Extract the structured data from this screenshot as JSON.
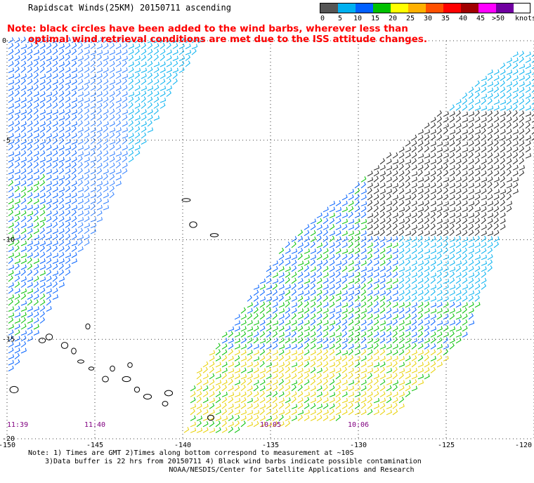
{
  "title": "Rapidscat Winds(25KM) 20150711 ascending",
  "note": {
    "line1": "Note: black circles have been added to the wind barbs, wherever less than",
    "line2": "optimal wind retrieval conditions are met due to the ISS attitude changes."
  },
  "legend": {
    "unit_label": "knots",
    "items": [
      {
        "label": "0",
        "color": "#555555"
      },
      {
        "label": "5",
        "color": "#00b0f0"
      },
      {
        "label": "10",
        "color": "#0060ff"
      },
      {
        "label": "15",
        "color": "#00c000"
      },
      {
        "label": "20",
        "color": "#ffff00"
      },
      {
        "label": "25",
        "color": "#ffb000"
      },
      {
        "label": "30",
        "color": "#ff5000"
      },
      {
        "label": "35",
        "color": "#ff0000"
      },
      {
        "label": "40",
        "color": "#a00000"
      },
      {
        "label": "45",
        "color": "#ff00ff"
      },
      {
        "label": ">50",
        "color": "#7000a0"
      }
    ]
  },
  "map": {
    "lon_range": [
      -150,
      -120
    ],
    "lat_range": [
      0,
      -20
    ],
    "lon_ticks": [
      -150,
      -145,
      -140,
      -135,
      -130,
      -125,
      -120
    ],
    "lat_ticks": [
      0,
      -5,
      -10,
      -15,
      -20
    ],
    "lon_tick_labels": [
      "-150",
      "-145",
      "-140",
      "-135",
      "-130",
      "-125",
      "-120"
    ],
    "lat_tick_labels": [
      "0",
      "-5",
      "-10",
      "-15",
      "-20"
    ],
    "grid": "dotted",
    "time_labels": [
      {
        "text": "11:39",
        "lon": -150.0
      },
      {
        "text": "11:40",
        "lon": -145.0
      },
      {
        "text": "10:05",
        "lon": -135.0
      },
      {
        "text": "10:06",
        "lon": -130.0
      }
    ],
    "time_label_color": "#800080",
    "swaths": [
      {
        "name": "western",
        "polygon": [
          [
            -150.0,
            0.0
          ],
          [
            -139.0,
            0.0
          ],
          [
            -148.6,
            -15.0
          ],
          [
            -149.7,
            -16.7
          ],
          [
            -150.0,
            -16.7
          ]
        ]
      },
      {
        "name": "eastern",
        "polygon": [
          [
            -121.3,
            -0.7
          ],
          [
            -120.0,
            -0.7
          ],
          [
            -120.0,
            -5.0
          ],
          [
            -124.0,
            -15.0
          ],
          [
            -128.0,
            -18.8
          ],
          [
            -140.0,
            -20.0
          ],
          [
            -139.5,
            -17.0
          ],
          [
            -134.0,
            -10.0
          ]
        ]
      }
    ]
  },
  "footer": {
    "line1": "Note: 1) Times are GMT 2)Times along bottom correspond to measurement at ~10S",
    "line2": "3)Data buffer is 22 hrs from 20150711 4) Black wind barbs indicate possible contamination",
    "line3": "NOAA/NESDIS/Center for Satellite Applications and Research"
  }
}
